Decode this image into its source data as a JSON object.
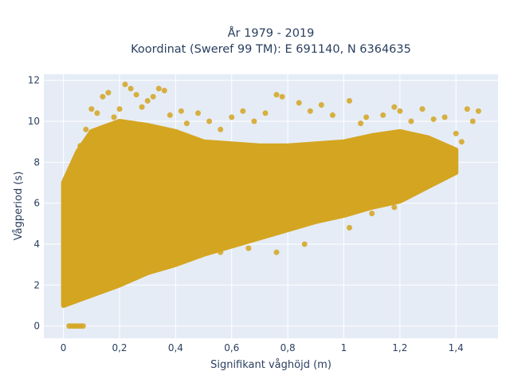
{
  "chart_data": {
    "type": "scatter",
    "title": "År 1979 - 2019",
    "subtitle": "Koordinat (Sweref 99 TM): E 691140, N 6364635",
    "xlabel": "Signifikant våghöjd (m)",
    "ylabel": "Vågperiod (s)",
    "xlim": [
      -0.07,
      1.55
    ],
    "ylim": [
      -0.6,
      12.3
    ],
    "xticks": [
      0,
      0.2,
      0.4,
      0.6,
      0.8,
      1,
      1.2,
      1.4
    ],
    "xtick_labels": [
      "0",
      "0,2",
      "0,4",
      "0,6",
      "0,8",
      "1",
      "1,2",
      "1,4"
    ],
    "yticks": [
      0,
      2,
      4,
      6,
      8,
      10,
      12
    ],
    "ytick_labels": [
      "0",
      "2",
      "4",
      "6",
      "8",
      "10",
      "12"
    ],
    "grid": true,
    "plot_background": "#e5ecf6",
    "marker_color": "#d4a520",
    "dense_region": {
      "lower_boundary": [
        [
          0.0,
          1.0
        ],
        [
          0.1,
          1.5
        ],
        [
          0.2,
          2.0
        ],
        [
          0.3,
          2.6
        ],
        [
          0.4,
          3.0
        ],
        [
          0.5,
          3.5
        ],
        [
          0.6,
          3.9
        ],
        [
          0.7,
          4.3
        ],
        [
          0.8,
          4.7
        ],
        [
          0.9,
          5.1
        ],
        [
          1.0,
          5.4
        ],
        [
          1.1,
          5.8
        ],
        [
          1.2,
          6.1
        ],
        [
          1.3,
          6.8
        ],
        [
          1.4,
          7.5
        ]
      ],
      "upper_boundary": [
        [
          0.0,
          7.0
        ],
        [
          0.05,
          8.5
        ],
        [
          0.1,
          9.5
        ],
        [
          0.2,
          10.0
        ],
        [
          0.3,
          9.8
        ],
        [
          0.4,
          9.5
        ],
        [
          0.5,
          9.0
        ],
        [
          0.6,
          8.9
        ],
        [
          0.7,
          8.8
        ],
        [
          0.8,
          8.8
        ],
        [
          0.9,
          8.9
        ],
        [
          1.0,
          9.0
        ],
        [
          1.1,
          9.3
        ],
        [
          1.2,
          9.5
        ],
        [
          1.3,
          9.2
        ],
        [
          1.4,
          8.6
        ]
      ]
    },
    "points": [
      [
        0.02,
        0.0
      ],
      [
        0.03,
        0.0
      ],
      [
        0.04,
        0.0
      ],
      [
        0.05,
        0.0
      ],
      [
        0.06,
        0.0
      ],
      [
        0.07,
        0.0
      ],
      [
        0.01,
        6.8
      ],
      [
        0.06,
        8.8
      ],
      [
        0.08,
        9.6
      ],
      [
        0.1,
        10.6
      ],
      [
        0.12,
        10.4
      ],
      [
        0.14,
        11.2
      ],
      [
        0.16,
        11.4
      ],
      [
        0.18,
        10.2
      ],
      [
        0.2,
        10.6
      ],
      [
        0.22,
        11.8
      ],
      [
        0.24,
        11.6
      ],
      [
        0.26,
        11.3
      ],
      [
        0.28,
        10.7
      ],
      [
        0.3,
        11.0
      ],
      [
        0.32,
        11.2
      ],
      [
        0.34,
        11.6
      ],
      [
        0.36,
        11.5
      ],
      [
        0.38,
        10.3
      ],
      [
        0.42,
        10.5
      ],
      [
        0.44,
        9.9
      ],
      [
        0.48,
        10.4
      ],
      [
        0.52,
        10.0
      ],
      [
        0.56,
        9.6
      ],
      [
        0.6,
        10.2
      ],
      [
        0.64,
        10.5
      ],
      [
        0.68,
        10.0
      ],
      [
        0.72,
        10.4
      ],
      [
        0.76,
        11.3
      ],
      [
        0.78,
        11.2
      ],
      [
        0.84,
        10.9
      ],
      [
        0.88,
        10.5
      ],
      [
        0.92,
        10.8
      ],
      [
        0.96,
        10.3
      ],
      [
        1.02,
        11.0
      ],
      [
        1.08,
        10.2
      ],
      [
        1.14,
        10.3
      ],
      [
        1.2,
        10.5
      ],
      [
        1.24,
        10.0
      ],
      [
        1.28,
        10.6
      ],
      [
        1.32,
        10.1
      ],
      [
        1.36,
        10.2
      ],
      [
        1.4,
        9.4
      ],
      [
        1.44,
        10.6
      ],
      [
        1.46,
        10.0
      ],
      [
        1.48,
        10.5
      ],
      [
        1.42,
        9.0
      ],
      [
        1.38,
        8.7
      ],
      [
        1.18,
        10.7
      ],
      [
        1.06,
        9.9
      ],
      [
        1.02,
        4.8
      ],
      [
        1.1,
        5.5
      ],
      [
        1.18,
        5.8
      ],
      [
        1.24,
        6.5
      ],
      [
        0.86,
        4.0
      ],
      [
        0.76,
        3.6
      ],
      [
        0.66,
        3.8
      ],
      [
        0.56,
        3.6
      ]
    ]
  }
}
